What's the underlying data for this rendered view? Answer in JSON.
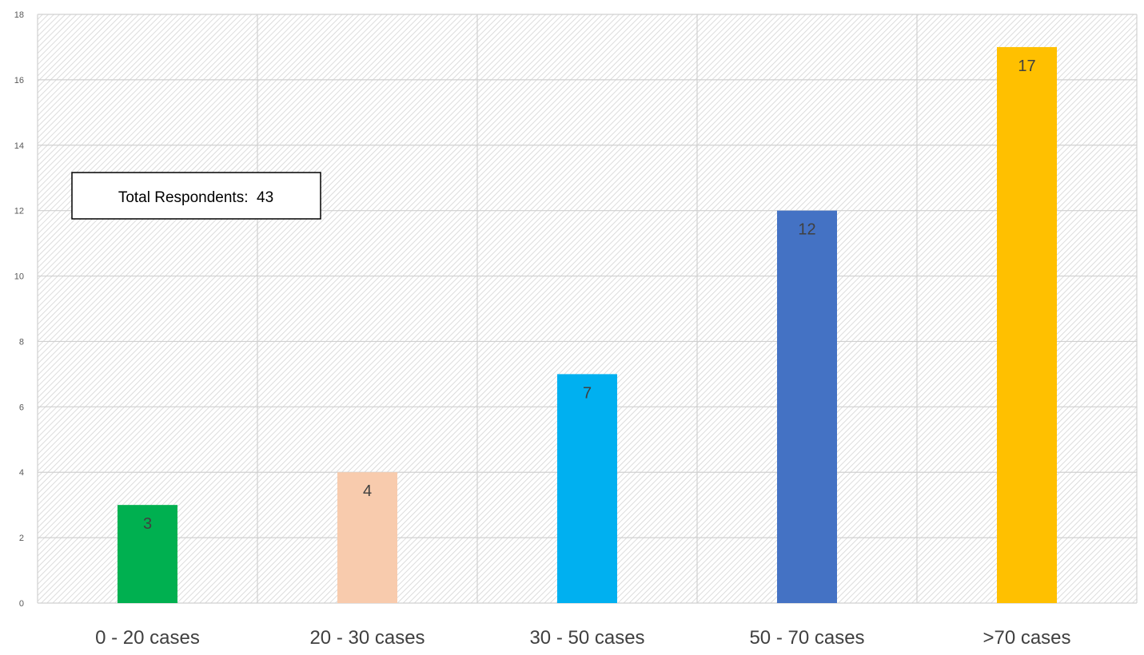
{
  "chart_data": {
    "type": "bar",
    "categories": [
      "0 - 20 cases",
      "20 - 30 cases",
      "30 - 50 cases",
      "50 - 70 cases",
      ">70 cases"
    ],
    "values": [
      3,
      4,
      7,
      12,
      17
    ],
    "colors": [
      "#00b050",
      "#f8cbad",
      "#00b0f0",
      "#4472c4",
      "#ffc000"
    ],
    "ylim": [
      0,
      18
    ],
    "yticks": [
      "0",
      "2",
      "4",
      "6",
      "8",
      "10",
      "12",
      "14",
      "16",
      "18"
    ],
    "grid": true,
    "plot_background": "hatched",
    "annotation": "Total Respondents:  43",
    "title": "",
    "xlabel": "",
    "ylabel": ""
  }
}
